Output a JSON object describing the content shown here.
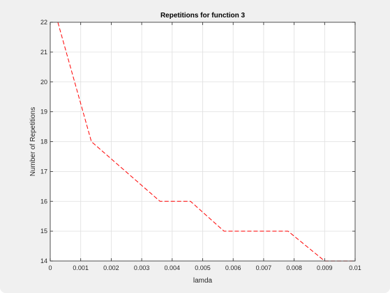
{
  "chart_data": {
    "type": "line",
    "title": "Repetitions for function 3",
    "xlabel": "lamda",
    "ylabel": "Number of Repetitions",
    "xlim": [
      0,
      0.01
    ],
    "ylim": [
      14,
      22
    ],
    "grid": true,
    "x_ticks": [
      0,
      0.001,
      0.002,
      0.003,
      0.004,
      0.005,
      0.006,
      0.007,
      0.008,
      0.009,
      0.01
    ],
    "x_tick_labels": [
      "0",
      "0.001",
      "0.002",
      "0.003",
      "0.004",
      "0.005",
      "0.006",
      "0.007",
      "0.008",
      "0.009",
      "0.01"
    ],
    "y_ticks": [
      14,
      15,
      16,
      17,
      18,
      19,
      20,
      21,
      22
    ],
    "y_tick_labels": [
      "14",
      "15",
      "16",
      "17",
      "18",
      "19",
      "20",
      "21",
      "22"
    ],
    "series": [
      {
        "line_style": "dashed",
        "color": "#ff0000",
        "x": [
          0.00025,
          0.00135,
          0.0036,
          0.0046,
          0.0057,
          0.0078,
          0.009,
          0.01
        ],
        "y": [
          22,
          18,
          16,
          16,
          15,
          15,
          14,
          14
        ]
      }
    ]
  }
}
